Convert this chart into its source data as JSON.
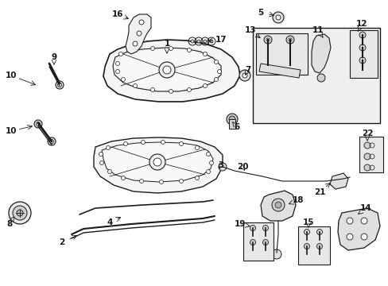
{
  "bg_color": "#ffffff",
  "line_color": "#1a1a1a",
  "gray_fill": "#e0e0e0",
  "light_gray": "#f0f0f0"
}
